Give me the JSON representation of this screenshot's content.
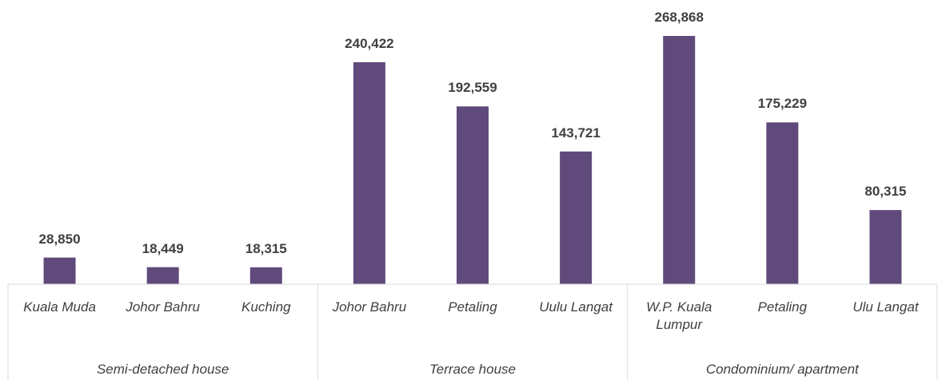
{
  "chart_data": {
    "type": "bar",
    "category_groups": [
      {
        "name": "Semi-detached house",
        "categories": [
          "Kuala Muda",
          "Johor Bahru",
          "Kuching"
        ]
      },
      {
        "name": "Terrace house",
        "categories": [
          "Johor Bahru",
          "Petaling",
          "Uulu Langat"
        ]
      },
      {
        "name": "Condominium/ apartment",
        "categories": [
          "W.P. Kuala Lumpur",
          "Petaling",
          "Ulu Langat"
        ]
      }
    ],
    "values": [
      28850,
      18449,
      18315,
      240422,
      192559,
      143721,
      268868,
      175229,
      80315
    ],
    "value_labels": [
      "28,850",
      "18,449",
      "18,315",
      "240,422",
      "192,559",
      "143,721",
      "268,868",
      "175,229",
      "80,315"
    ],
    "color": "#604a7b",
    "ylim": [
      0,
      300000
    ]
  }
}
